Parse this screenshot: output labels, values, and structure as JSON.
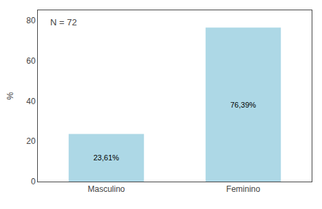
{
  "chart_data": {
    "type": "bar",
    "categories": [
      "Masculino",
      "Feminino"
    ],
    "values": [
      23.61,
      76.39
    ],
    "value_labels": [
      "23,61%",
      "76,39%"
    ],
    "data_labels": true,
    "color": "#add8e6",
    "ylabel": "%",
    "annotation": "N = 72",
    "ylim": [
      0,
      85
    ],
    "yticks": [
      0,
      20,
      40,
      60,
      80
    ],
    "grid": false
  }
}
